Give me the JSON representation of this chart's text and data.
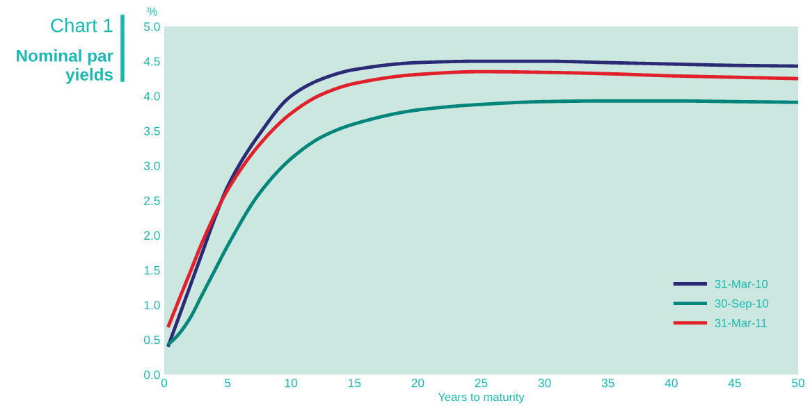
{
  "chart_data": {
    "type": "line",
    "title": "Chart 1",
    "subtitle": "Nominal par yields",
    "xlabel": "Years to maturity",
    "ylabel": "%",
    "xlim": [
      0,
      50
    ],
    "xticks": [
      0,
      5,
      10,
      15,
      20,
      25,
      30,
      35,
      40,
      45,
      50
    ],
    "ylim": [
      0.0,
      5.0
    ],
    "yticks": [
      {
        "value": 0,
        "label": "0.0"
      },
      0.5,
      {
        "value": 1,
        "label": "1.0"
      },
      1.5,
      {
        "value": 2,
        "label": "2.0"
      },
      2.5,
      {
        "value": 3,
        "label": "3.0"
      },
      3.5,
      {
        "value": 4,
        "label": "4.0"
      },
      4.5,
      {
        "value": 5,
        "label": "5.0"
      }
    ],
    "x": [
      0.3,
      1,
      2,
      3,
      4,
      5,
      7.5,
      10,
      12.5,
      15,
      20,
      25,
      30,
      35,
      40,
      45,
      50
    ],
    "series": [
      {
        "name": "31-Mar-10",
        "color": "#2b2a75",
        "values": [
          0.4,
          0.75,
          1.25,
          1.75,
          2.25,
          2.7,
          3.45,
          4.0,
          4.25,
          4.38,
          4.48,
          4.5,
          4.5,
          4.48,
          4.46,
          4.44,
          4.43
        ]
      },
      {
        "name": "30-Sep-10",
        "color": "#00857a",
        "values": [
          0.43,
          0.55,
          0.8,
          1.15,
          1.5,
          1.85,
          2.6,
          3.1,
          3.42,
          3.6,
          3.8,
          3.88,
          3.92,
          3.93,
          3.93,
          3.92,
          3.91
        ]
      },
      {
        "name": "31-Mar-11",
        "color": "#e0202a",
        "values": [
          0.68,
          1.0,
          1.45,
          1.9,
          2.3,
          2.65,
          3.3,
          3.75,
          4.03,
          4.18,
          4.31,
          4.35,
          4.34,
          4.32,
          4.29,
          4.27,
          4.25
        ]
      }
    ],
    "legend": "bottom right",
    "grid": false,
    "marker": "none",
    "line_style": "solid"
  }
}
